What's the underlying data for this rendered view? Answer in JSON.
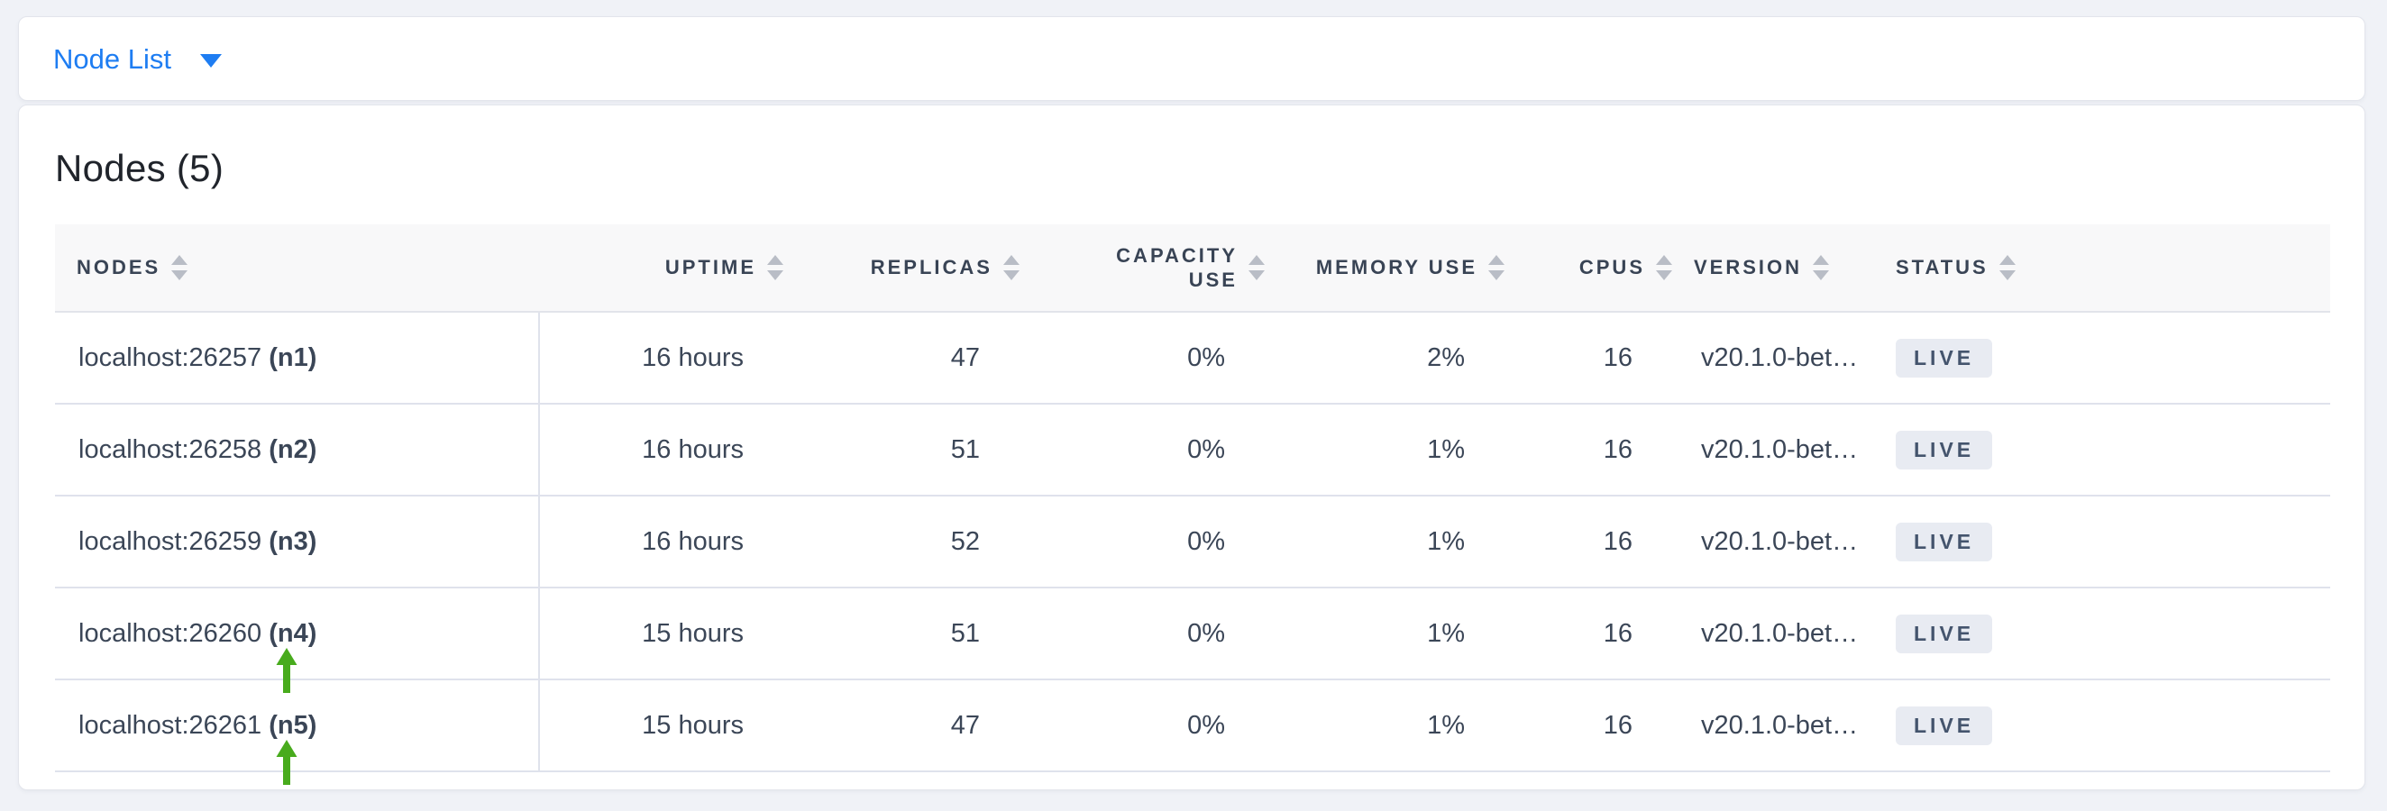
{
  "nav": {
    "dropdown_label": "Node List"
  },
  "main": {
    "title": "Nodes (5)"
  },
  "table": {
    "columns": [
      {
        "id": "nodes",
        "label": "NODES",
        "align": "left"
      },
      {
        "id": "uptime",
        "label": "UPTIME",
        "align": "right"
      },
      {
        "id": "replicas",
        "label": "REPLICAS",
        "align": "right"
      },
      {
        "id": "capacity_use",
        "label": "CAPACITY USE",
        "align": "right",
        "wrap": true
      },
      {
        "id": "memory_use",
        "label": "MEMORY USE",
        "align": "right"
      },
      {
        "id": "cpus",
        "label": "CPUS",
        "align": "right"
      },
      {
        "id": "version",
        "label": "VERSION",
        "align": "left"
      },
      {
        "id": "status",
        "label": "STATUS",
        "align": "left"
      }
    ],
    "rows": [
      {
        "nodes_address": "localhost:26257",
        "nodes_id": "(n1)",
        "uptime": "16 hours",
        "replicas": "47",
        "capacity_use": "0%",
        "memory_use": "2%",
        "cpus": "16",
        "version": "v20.1.0-bet…",
        "status": "LIVE",
        "annotated": false
      },
      {
        "nodes_address": "localhost:26258",
        "nodes_id": "(n2)",
        "uptime": "16 hours",
        "replicas": "51",
        "capacity_use": "0%",
        "memory_use": "1%",
        "cpus": "16",
        "version": "v20.1.0-bet…",
        "status": "LIVE",
        "annotated": false
      },
      {
        "nodes_address": "localhost:26259",
        "nodes_id": "(n3)",
        "uptime": "16 hours",
        "replicas": "52",
        "capacity_use": "0%",
        "memory_use": "1%",
        "cpus": "16",
        "version": "v20.1.0-bet…",
        "status": "LIVE",
        "annotated": false
      },
      {
        "nodes_address": "localhost:26260",
        "nodes_id": "(n4)",
        "uptime": "15 hours",
        "replicas": "51",
        "capacity_use": "0%",
        "memory_use": "1%",
        "cpus": "16",
        "version": "v20.1.0-bet…",
        "status": "LIVE",
        "annotated": true
      },
      {
        "nodes_address": "localhost:26261",
        "nodes_id": "(n5)",
        "uptime": "15 hours",
        "replicas": "47",
        "capacity_use": "0%",
        "memory_use": "1%",
        "cpus": "16",
        "version": "v20.1.0-bet…",
        "status": "LIVE",
        "annotated": true
      }
    ]
  },
  "icons": {
    "nav_caret": "caret-down",
    "header_sort": "sort-carets",
    "row_annotation": "green-arrow-up"
  },
  "colors": {
    "accent_blue": "#1e7df2",
    "arrow_green": "#48ab1d",
    "header_text": "#394455",
    "cell_text": "#3b4657",
    "badge_bg": "#e8ebf2",
    "badge_text": "#44546d",
    "page_bg": "#f0f2f7",
    "header_bg": "#f8f8f9",
    "row_border": "#dfe2ec"
  }
}
